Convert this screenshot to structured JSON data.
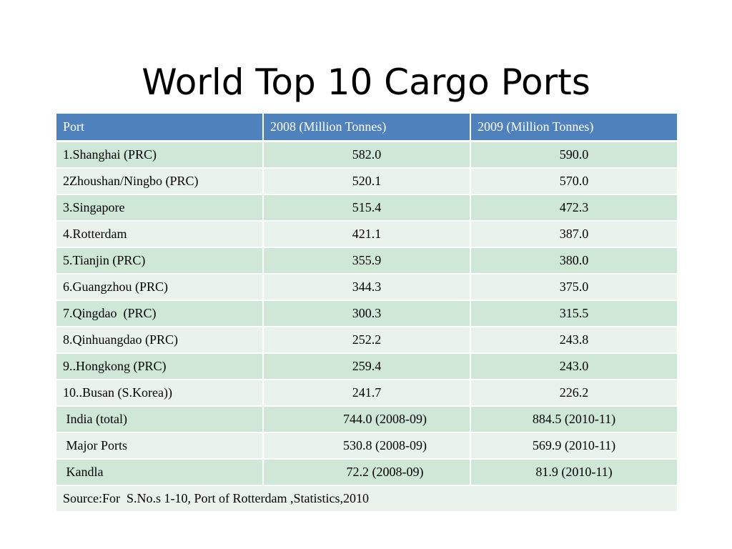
{
  "title": "World Top 10 Cargo Ports",
  "table": {
    "headers": [
      "Port",
      "2008 (Million Tonnes)",
      "2009 (Million Tonnes)"
    ],
    "rows": [
      {
        "port": "1.Shanghai (PRC)",
        "y2008": "582.0",
        "y2009": "590.0"
      },
      {
        "port": "2Zhoushan/Ningbo (PRC)",
        "y2008": "520.1",
        "y2009": "570.0"
      },
      {
        "port": "3.Singapore",
        "y2008": "515.4",
        "y2009": "472.3"
      },
      {
        "port": "4.Rotterdam",
        "y2008": "421.1",
        "y2009": "387.0"
      },
      {
        "port": "5.Tianjin (PRC)",
        "y2008": "355.9",
        "y2009": "380.0"
      },
      {
        "port": "6.Guangzhou (PRC)",
        "y2008": "344.3",
        "y2009": "375.0"
      },
      {
        "port": "7.Qingdao  (PRC)",
        "y2008": "300.3",
        "y2009": "315.5"
      },
      {
        "port": "8.Qinhuangdao (PRC)",
        "y2008": "252.2",
        "y2009": "243.8"
      },
      {
        "port": "9..Hongkong (PRC)",
        "y2008": "259.4",
        "y2009": "243.0"
      },
      {
        "port": "10..Busan (S.Korea))",
        "y2008": "241.7",
        "y2009": "226.2"
      },
      {
        "port": " India (total)",
        "y2008": "744.0 (2008-09)",
        "y2009": "884.5 (2010-11)"
      },
      {
        "port": " Major Ports",
        "y2008": "530.8 (2008-09)",
        "y2009": "569.9 (2010-11)"
      },
      {
        "port": " Kandla",
        "y2008": "72.2 (2008-09)",
        "y2009": "81.9 (2010-11)"
      }
    ],
    "source": "Source:For  S.No.s 1-10, Port of Rotterdam ,Statistics,2010"
  }
}
